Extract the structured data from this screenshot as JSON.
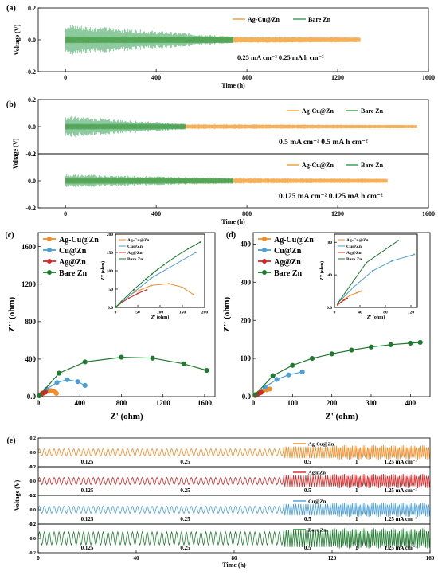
{
  "figure": {
    "panels": [
      {
        "id": "a",
        "label": "(a)"
      },
      {
        "id": "b",
        "label": "(b)"
      },
      {
        "id": "c",
        "label": "(c)"
      },
      {
        "id": "d",
        "label": "(d)"
      },
      {
        "id": "e",
        "label": "(e)"
      }
    ]
  },
  "chart_data": [
    {
      "panel": "(a)",
      "type": "line",
      "title": "",
      "xlabel": "Time (h)",
      "ylabel": "Voltage (V)",
      "xlim": [
        -120,
        1600
      ],
      "ylim": [
        -0.2,
        0.2
      ],
      "xticks": [
        0,
        400,
        800,
        1200,
        1600
      ],
      "yticks": [
        -0.2,
        0.0,
        0.2
      ],
      "annotation": "0.25 mA cm⁻² 0.25 mA h cm⁻²",
      "legend_position": "top-right",
      "series": [
        {
          "name": "Ag-Cu@Zn",
          "color": "#f29a2e",
          "x_range": [
            0,
            1300
          ],
          "amplitude": [
            0.03,
            0.015
          ]
        },
        {
          "name": "Bare Zn",
          "color": "#2e9e4f",
          "x_range": [
            0,
            740
          ],
          "amplitude": [
            0.1,
            0.02
          ]
        }
      ]
    },
    {
      "panel": "(b) top",
      "type": "line",
      "xlim": [
        -120,
        1600
      ],
      "ylim": [
        -0.2,
        0.2
      ],
      "yticks": [
        -0.2,
        0.0,
        0.2
      ],
      "annotation": "0.5 mA cm⁻² 0.5 mA h cm⁻²",
      "legend_position": "top-right",
      "series": [
        {
          "name": "Ag-Cu@Zn",
          "color": "#f29a2e",
          "x_range": [
            0,
            1550
          ],
          "amplitude": [
            0.025,
            0.012
          ]
        },
        {
          "name": "Bare Zn",
          "color": "#2e9e4f",
          "x_range": [
            0,
            530
          ],
          "amplitude": [
            0.08,
            0.02
          ]
        }
      ]
    },
    {
      "panel": "(b) bottom",
      "type": "line",
      "xlabel": "Time (h)",
      "ylabel": "Voltage (V)",
      "xlim": [
        -120,
        1600
      ],
      "ylim": [
        -0.2,
        0.2
      ],
      "xticks": [
        0,
        400,
        800,
        1200,
        1600
      ],
      "yticks": [
        -0.2,
        0.0,
        0.2
      ],
      "annotation": "0.125 mA cm⁻² 0.125 mA h cm⁻²",
      "legend_position": "top-right",
      "series": [
        {
          "name": "Ag-Cu@Zn",
          "color": "#f29a2e",
          "x_range": [
            0,
            1420
          ],
          "amplitude": [
            0.03,
            0.015
          ]
        },
        {
          "name": "Bare Zn",
          "color": "#2e9e4f",
          "x_range": [
            0,
            740
          ],
          "amplitude": [
            0.05,
            0.02
          ]
        }
      ]
    },
    {
      "panel": "(c)",
      "type": "scatter",
      "xlabel": "Z' (ohm)",
      "ylabel": "Z'' (ohm)",
      "xlim": [
        0,
        1700
      ],
      "ylim": [
        0,
        1750
      ],
      "xticks": [
        0,
        400,
        800,
        1200,
        1600
      ],
      "yticks": [
        0,
        400,
        800,
        1200,
        1600
      ],
      "legend_position": "top-left",
      "series": [
        {
          "name": "Ag-Cu@Zn",
          "color": "#f28c28",
          "x": [
            10,
            40,
            80,
            120,
            150,
            175
          ],
          "y": [
            10,
            40,
            60,
            65,
            55,
            35
          ]
        },
        {
          "name": "Cu@Zn",
          "color": "#4e9fd6",
          "x": [
            10,
            80,
            180,
            280,
            380,
            450
          ],
          "y": [
            10,
            80,
            150,
            180,
            160,
            120
          ]
        },
        {
          "name": "Ag@Zn",
          "color": "#d62728",
          "x": [
            10,
            30,
            50,
            70
          ],
          "y": [
            10,
            25,
            38,
            48
          ]
        },
        {
          "name": "Bare Zn",
          "color": "#1e7a2e",
          "x": [
            10,
            200,
            450,
            800,
            1100,
            1400,
            1620
          ],
          "y": [
            10,
            250,
            370,
            420,
            410,
            350,
            280
          ]
        }
      ],
      "inset": {
        "xlabel": "Z' (ohm)",
        "ylabel": "Z'' (ohm)",
        "xlim": [
          0,
          200
        ],
        "ylim": [
          0,
          200
        ],
        "xticks": [
          0,
          50,
          100,
          150,
          200
        ],
        "yticks": [
          0,
          50,
          100,
          150,
          200
        ],
        "legend": [
          "Ag-Cu@Zn",
          "Cu@Zn",
          "Ag@Zn",
          "Bare Zn"
        ]
      }
    },
    {
      "panel": "(d)",
      "type": "scatter",
      "xlabel": "Z' (ohm)",
      "ylabel": "Z'' (ohm)",
      "xlim": [
        0,
        450
      ],
      "ylim": [
        0,
        430
      ],
      "xticks": [
        0,
        100,
        200,
        300,
        400
      ],
      "yticks": [
        0,
        100,
        200,
        300,
        400
      ],
      "legend_position": "top-left",
      "series": [
        {
          "name": "Ag-Cu@Zn",
          "color": "#f28c28",
          "x": [
            5,
            15,
            25,
            35,
            42
          ],
          "y": [
            3,
            10,
            15,
            18,
            20
          ]
        },
        {
          "name": "Cu@Zn",
          "color": "#4e9fd6",
          "x": [
            5,
            30,
            60,
            90,
            125
          ],
          "y": [
            5,
            25,
            45,
            57,
            65
          ]
        },
        {
          "name": "Ag@Zn",
          "color": "#d62728",
          "x": [
            5,
            10,
            15,
            20
          ],
          "y": [
            3,
            6,
            9,
            11
          ]
        },
        {
          "name": "Bare Zn",
          "color": "#1e7a2e",
          "x": [
            5,
            50,
            100,
            150,
            200,
            250,
            300,
            350,
            400,
            425
          ],
          "y": [
            5,
            55,
            82,
            100,
            112,
            122,
            130,
            136,
            140,
            142
          ]
        }
      ],
      "inset": {
        "xlabel": "Z' (ohm)",
        "ylabel": "Z'' (ohm)",
        "xlim": [
          0,
          130
        ],
        "ylim": [
          0,
          90
        ],
        "xticks": [
          0,
          40,
          80,
          120
        ],
        "yticks": [
          0,
          40,
          80
        ],
        "legend": [
          "Ag-Cu@Zn",
          "Cu@Zn",
          "Ag@Zn",
          "Bare Zn"
        ]
      }
    },
    {
      "panel": "(e)",
      "type": "line",
      "xlabel": "Time (h)",
      "ylabel": "Voltage (V)",
      "xlim": [
        0,
        160
      ],
      "xticks": [
        0,
        40,
        80,
        120,
        160
      ],
      "rate_labels": [
        "0.125",
        "0.25",
        "0.5",
        "1",
        "1.25 mA cm⁻²"
      ],
      "subplots": [
        {
          "name": "Ag-Cu@Zn",
          "color": "#f28c28",
          "ylim": [
            -0.2,
            0.2
          ],
          "yticks": [
            -0.2,
            0.0,
            0.2
          ]
        },
        {
          "name": "Ag@Zn",
          "color": "#d62728",
          "ylim": [
            -0.2,
            0.2
          ],
          "yticks": [
            -0.2,
            0.0,
            0.2
          ]
        },
        {
          "name": "Cu@Zn",
          "color": "#4e9fd6",
          "ylim": [
            -0.2,
            0.2
          ],
          "yticks": [
            -0.2,
            0.0,
            0.2
          ]
        },
        {
          "name": "Bare Zn",
          "color": "#1e7a2e",
          "ylim": [
            -0.2,
            0.2
          ],
          "yticks": [
            -0.2,
            0.0,
            0.2
          ]
        }
      ]
    }
  ]
}
